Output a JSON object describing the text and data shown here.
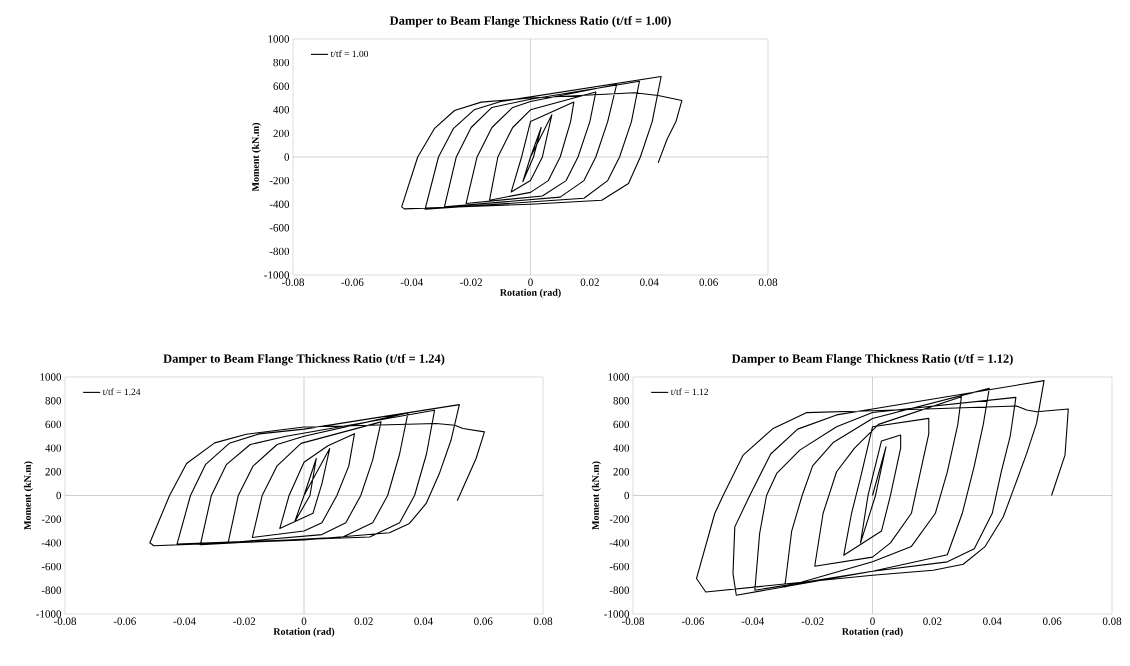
{
  "chart_data": [
    {
      "type": "line",
      "title": "Damper to Beam Flange Thickness Ratio (t/tf = 1.00)",
      "xlabel": "Rotation (rad)",
      "ylabel": "Moment (kN.m)",
      "xlim": [
        -0.08,
        0.08
      ],
      "ylim": [
        -1000,
        1000
      ],
      "xticks": [
        -0.08,
        -0.06,
        -0.04,
        -0.02,
        0,
        0.02,
        0.04,
        0.06,
        0.08
      ],
      "yticks": [
        -1000,
        -800,
        -600,
        -400,
        -200,
        0,
        200,
        400,
        600,
        800,
        1000
      ],
      "legend": "top left",
      "series": [
        {
          "name": "t/tf = 1.00",
          "color": "#000000",
          "x": [
            0,
            0.0036,
            0.001,
            -0.0026,
            0.0,
            0.0072,
            0.004,
            0.0,
            -0.0065,
            -0.003,
            0.0,
            0.0146,
            0.0135,
            0.01,
            0.006,
            0.0,
            -0.0138,
            -0.011,
            -0.006,
            0.0,
            0.022,
            0.02,
            0.016,
            0.012,
            0.004,
            -0.0217,
            -0.018,
            -0.013,
            -0.006,
            0.0,
            0.029,
            0.026,
            0.022,
            0.018,
            0.01,
            -0.029,
            -0.025,
            -0.02,
            -0.013,
            0.0,
            0.0367,
            0.034,
            0.03,
            0.026,
            0.018,
            -0.0355,
            -0.031,
            -0.026,
            -0.019,
            -0.01,
            0.044,
            0.041,
            0.037,
            0.033,
            0.024,
            0.0,
            -0.0425,
            -0.0434,
            -0.038,
            -0.0324,
            -0.0256,
            -0.0166,
            0.0,
            0.035,
            0.043,
            0.047,
            0.051,
            0.049,
            0.046,
            0.043
          ],
          "values": [
            0,
            250,
            0,
            -210,
            0,
            358,
            0,
            -200,
            -296,
            0,
            300,
            465,
            300,
            0,
            -200,
            -300,
            -366,
            0,
            250,
            400,
            550,
            300,
            0,
            -200,
            -330,
            -394,
            0,
            250,
            420,
            470,
            614,
            300,
            0,
            -200,
            -340,
            -423,
            0,
            250,
            420,
            490,
            642,
            300,
            0,
            -200,
            -350,
            -442,
            0,
            240,
            400,
            470,
            682,
            300,
            0,
            -225,
            -366,
            -400,
            -440,
            -423,
            0,
            240,
            394,
            465,
            500,
            545,
            521,
            500,
            479,
            300,
            150,
            -50
          ]
        }
      ]
    },
    {
      "type": "line",
      "title": "Damper to Beam Flange Thickness Ratio (t/tf = 1.24)",
      "xlabel": "Rotation (rad)",
      "ylabel": "Moment (kN.m)",
      "xlim": [
        -0.08,
        0.08
      ],
      "ylim": [
        -1000,
        1000
      ],
      "xticks": [
        -0.08,
        -0.06,
        -0.04,
        -0.02,
        0,
        0.02,
        0.04,
        0.06,
        0.08
      ],
      "yticks": [
        -1000,
        -800,
        -600,
        -400,
        -200,
        0,
        200,
        400,
        600,
        800,
        1000
      ],
      "legend": "top left",
      "series": [
        {
          "name": "t/tf = 1.24",
          "color": "#000000",
          "x": [
            0,
            0.0041,
            0.002,
            -0.0031,
            0.0,
            0.0086,
            0.006,
            0.003,
            -0.0081,
            -0.005,
            0.0,
            0.008,
            0.0169,
            0.015,
            0.011,
            0.006,
            0.0,
            -0.0173,
            -0.014,
            -0.009,
            -0.001,
            0.0258,
            0.023,
            0.019,
            0.014,
            0.006,
            -0.0254,
            -0.022,
            -0.017,
            -0.009,
            0.0,
            0.0348,
            0.032,
            0.028,
            0.023,
            0.013,
            -0.0347,
            -0.031,
            -0.026,
            -0.018,
            -0.006,
            0.0437,
            0.041,
            0.037,
            0.032,
            0.022,
            -0.0425,
            -0.038,
            -0.033,
            -0.025,
            -0.015,
            0.0,
            0.052,
            0.0492,
            0.0453,
            0.0409,
            0.0353,
            0.0286,
            0.0,
            -0.0503,
            -0.0516,
            -0.045,
            -0.0393,
            -0.0299,
            -0.0193,
            0.0,
            0.0442,
            0.0505,
            0.0532,
            0.0604,
            0.0576,
            0.0513
          ],
          "values": [
            0,
            312,
            0,
            -222,
            0,
            396,
            100,
            -150,
            -278,
            0,
            280,
            420,
            522,
            250,
            0,
            -230,
            -300,
            -354,
            0,
            250,
            440,
            621,
            300,
            0,
            -230,
            -330,
            -399,
            0,
            250,
            430,
            500,
            697,
            350,
            0,
            -230,
            -350,
            -416,
            0,
            260,
            430,
            500,
            719,
            350,
            0,
            -230,
            -350,
            -410,
            0,
            260,
            440,
            520,
            560,
            767,
            466,
            185,
            -67,
            -236,
            -315,
            -376,
            -424,
            -399,
            0,
            270,
            444,
            517,
            578,
            607,
            593,
            565,
            537,
            312,
            -45
          ]
        }
      ]
    },
    {
      "type": "line",
      "title": "Damper to Beam Flange Thickness Ratio (t/tf = 1.12)",
      "xlabel": "Rotation (rad)",
      "ylabel": "Moment (kN.m)",
      "xlim": [
        -0.08,
        0.08
      ],
      "ylim": [
        -1000,
        1000
      ],
      "xticks": [
        -0.08,
        -0.06,
        -0.04,
        -0.02,
        0,
        0.02,
        0.04,
        0.06,
        0.08
      ],
      "yticks": [
        -1000,
        -800,
        -600,
        -400,
        -200,
        0,
        200,
        400,
        600,
        800,
        1000
      ],
      "legend": "top left",
      "series": [
        {
          "name": "t/tf = 1.12",
          "color": "#000000",
          "x": [
            0,
            0.0045,
            0.001,
            -0.004,
            -0.0015,
            0.003,
            0.0094,
            0.0094,
            0.006,
            0.003,
            -0.0096,
            -0.007,
            -0.004,
            0.0,
            0.0188,
            0.0188,
            0.016,
            0.013,
            0.006,
            0.0,
            -0.0193,
            -0.0165,
            -0.012,
            -0.006,
            0.002,
            0.0297,
            0.0285,
            0.025,
            0.021,
            0.013,
            0.0,
            -0.0293,
            -0.027,
            -0.0235,
            -0.02,
            -0.013,
            0.0,
            0.039,
            0.037,
            0.034,
            0.03,
            0.025,
            0.0,
            -0.0393,
            -0.0377,
            -0.0354,
            -0.032,
            -0.0243,
            -0.012,
            0.0,
            0.0479,
            0.046,
            0.043,
            0.04,
            0.034,
            0.025,
            0.0,
            -0.0455,
            -0.0466,
            -0.046,
            -0.041,
            -0.034,
            -0.025,
            -0.012,
            0.0,
            0.0573,
            0.0548,
            0.0515,
            0.047,
            0.0437,
            0.0375,
            0.0303,
            0.0203,
            0.0,
            -0.0557,
            -0.0588,
            -0.0527,
            -0.0499,
            -0.0432,
            -0.0332,
            -0.0221,
            0.0,
            0.0481,
            0.0515,
            0.0548,
            0.0654,
            0.0643,
            0.0598
          ],
          "values": [
            0,
            411,
            0,
            -400,
            0,
            460,
            510,
            400,
            0,
            -300,
            -504,
            -150,
            150,
            580,
            651,
            520,
            200,
            -150,
            -400,
            -520,
            -597,
            -150,
            200,
            400,
            600,
            834,
            600,
            200,
            -150,
            -430,
            -560,
            -772,
            -300,
            0,
            250,
            450,
            650,
            904,
            600,
            250,
            -150,
            -500,
            -640,
            -800,
            -321,
            0,
            186,
            383,
            580,
            700,
            828,
            500,
            200,
            -150,
            -450,
            -560,
            -640,
            -842,
            -659,
            -265,
            0,
            350,
            560,
            680,
            730,
            969,
            608,
            355,
            45,
            -180,
            -434,
            -580,
            -631,
            -673,
            -814,
            -701,
            -152,
            0,
            341,
            566,
            699,
            715,
            755,
            721,
            707,
            730,
            341,
            0
          ]
        }
      ]
    }
  ]
}
